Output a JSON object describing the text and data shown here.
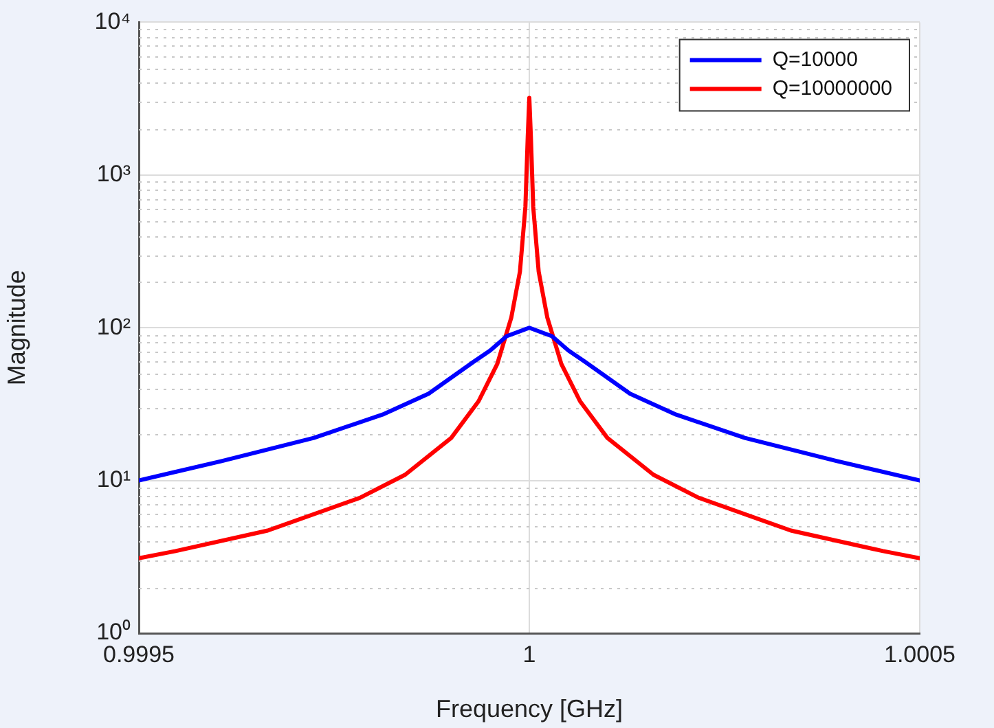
{
  "chart_data": {
    "type": "line",
    "xlabel": "Frequency [GHz]",
    "ylabel": "Magnitude",
    "xlim": [
      0.9995,
      1.0005
    ],
    "xticks": [
      0.9995,
      1,
      1.0005
    ],
    "ylim": [
      1,
      10000
    ],
    "yticks": [
      {
        "value": 1,
        "label": "10⁰"
      },
      {
        "value": 10,
        "label": "10¹"
      },
      {
        "value": 100,
        "label": "10²"
      },
      {
        "value": 1000,
        "label": "10³"
      },
      {
        "value": 10000,
        "label": "10⁴"
      }
    ],
    "log": "y",
    "grid": true,
    "legend": "top right",
    "line_style": "solid",
    "marker": "none",
    "series": [
      {
        "name": "Q=10000",
        "color": "#0000ff",
        "x": [
          0.9995,
          0.999606,
          0.999724,
          0.999812,
          0.999871,
          0.999929,
          0.99995,
          0.999971,
          1,
          1.000029,
          1.00005,
          1.000071,
          1.000129,
          1.000188,
          1.000276,
          1.000394,
          1.0005
        ],
        "values": [
          10,
          13.4,
          19,
          27,
          37,
          60,
          71,
          88,
          100,
          88,
          71,
          60,
          37,
          27,
          19,
          13.4,
          10
        ]
      },
      {
        "name": "Q=10000000",
        "color": "#ff0000",
        "x": [
          0.9995,
          0.999547,
          0.999665,
          0.999783,
          0.999841,
          0.9999,
          0.999935,
          0.999959,
          0.999977,
          0.999988,
          0.999995,
          0.999998,
          1,
          1.000002,
          1.000005,
          1.000012,
          1.000023,
          1.000041,
          1.000065,
          1.0001,
          1.000159,
          1.000217,
          1.000335,
          1.000453,
          1.0005
        ],
        "values": [
          3.1,
          3.45,
          4.7,
          7.7,
          10.9,
          19,
          33,
          58,
          117,
          233,
          620,
          1780,
          3200,
          1780,
          620,
          233,
          117,
          58,
          33,
          19,
          10.9,
          7.7,
          4.7,
          3.45,
          3.1
        ]
      }
    ]
  }
}
